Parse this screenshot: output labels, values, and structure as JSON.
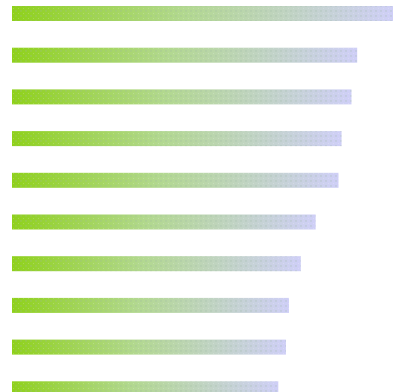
{
  "chart_data": {
    "type": "bar",
    "orientation": "horizontal",
    "values": [
      100,
      90.6,
      89.1,
      86.5,
      85.7,
      79.7,
      75.8,
      72.7,
      71.9,
      69.9
    ],
    "xlim": [
      0,
      100
    ],
    "axes_visible": false,
    "grid": false,
    "legend": "none"
  },
  "colors": {
    "background": "#ffffff",
    "bar_gradient_start": "#8fd11b",
    "bar_gradient_mid": "#b2d88f",
    "bar_gradient_end": "#cfcff7",
    "dot_texture": "#9cb8a3"
  }
}
